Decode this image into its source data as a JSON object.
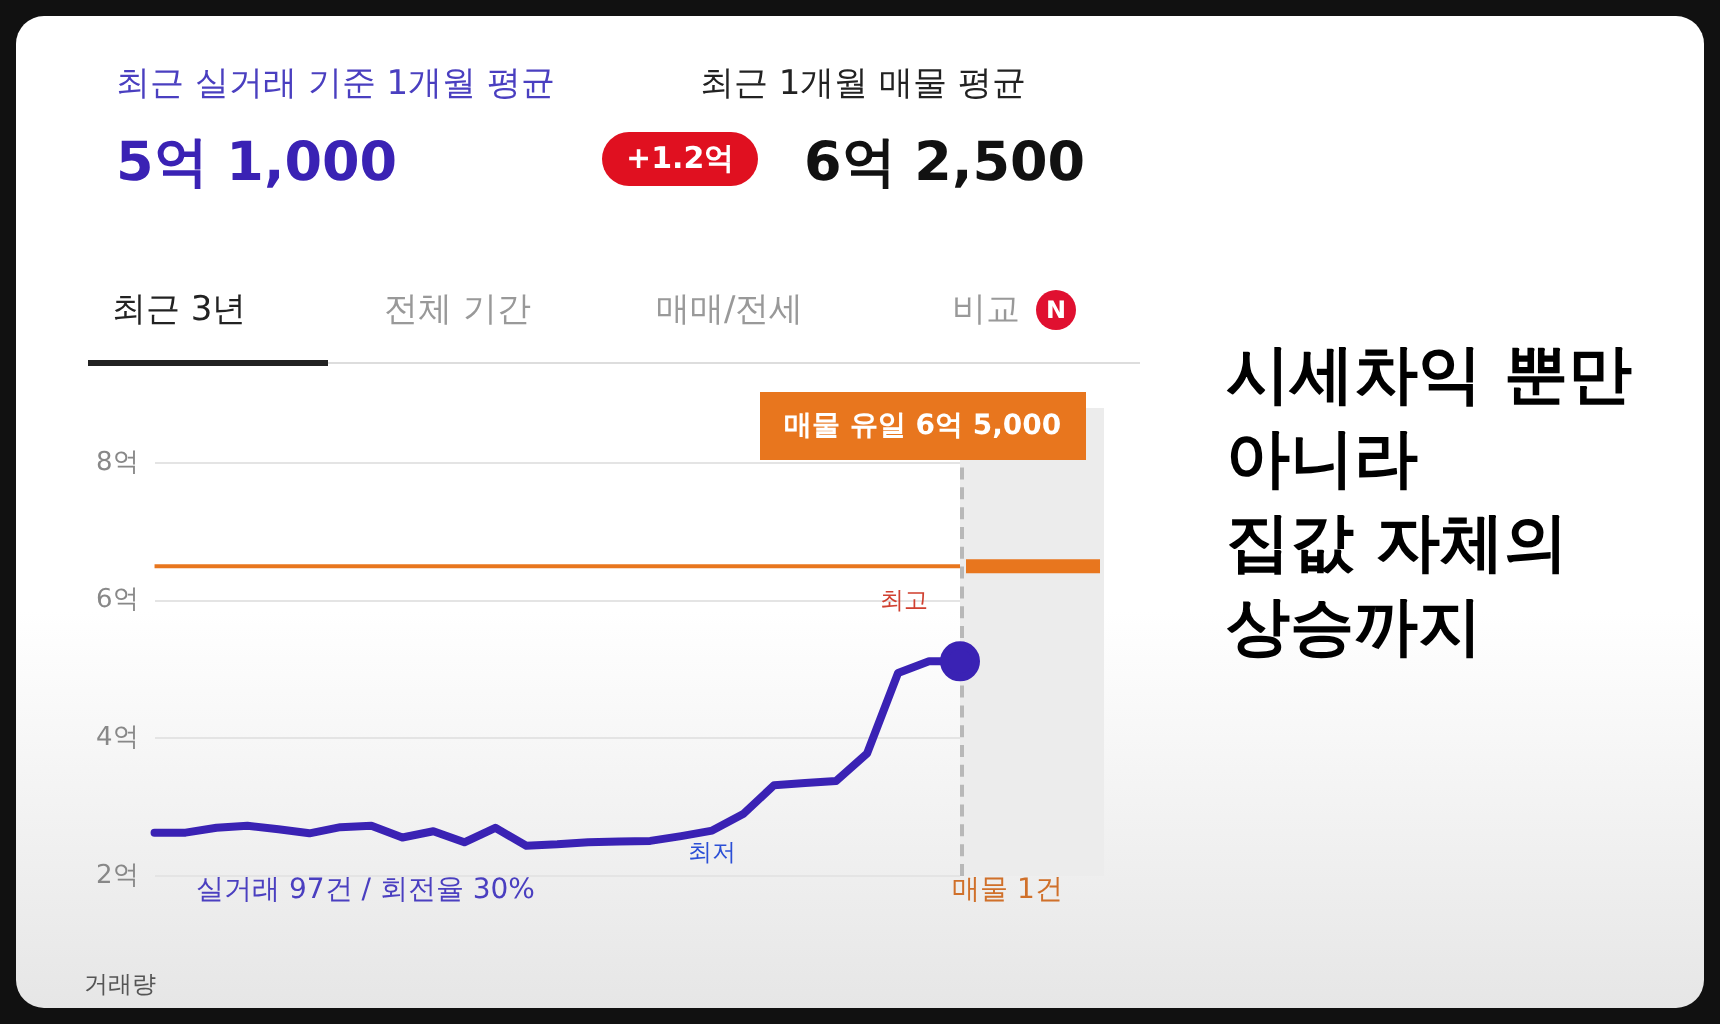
{
  "chart_data": {
    "type": "line",
    "categories": [
      null,
      null,
      null,
      null,
      null,
      null,
      null,
      null,
      null,
      null,
      null,
      null,
      null,
      null,
      null,
      null,
      null,
      null,
      null,
      null,
      null,
      null,
      null,
      null,
      null,
      null,
      null
    ],
    "series": [
      {
        "color": "#3a22b4",
        "values": [
          2.63,
          2.63,
          2.7,
          2.73,
          2.68,
          2.62,
          2.71,
          2.73,
          2.56,
          2.65,
          2.49,
          2.7,
          2.44,
          2.46,
          2.49,
          2.5,
          2.51,
          2.58,
          2.66,
          2.9,
          3.32,
          3.35,
          3.38,
          3.78,
          4.95,
          5.12,
          5.12
        ]
      }
    ],
    "ylim": [
      2,
      8.8
    ],
    "yticks": [
      {
        "value": 2,
        "label": "2억"
      },
      {
        "value": 4,
        "label": "4억"
      },
      {
        "value": 6,
        "label": "6억"
      },
      {
        "value": 8,
        "label": "8억"
      }
    ],
    "tick_labels": "y",
    "grid": "y",
    "legend": false,
    "ref_lines": [
      {
        "axis": "y",
        "value": 6.5,
        "color": "#e8761e"
      }
    ],
    "annotations": [
      "최고",
      "최저",
      "최근 실거래 기준 1개월 평균",
      "5억 1,000",
      "최근 1개월 매물 평균",
      "+1.2억",
      "6억 2,500",
      "최근 3년",
      "전체 기간",
      "매매/전세",
      "비교",
      "N",
      "실거래 97건 / 회전율 30%",
      "매물 1건",
      "거래량",
      "시세차익 뿐만",
      "아니라",
      "집값 자체의",
      "상승까지",
      "매물 유일 6억 5,000"
    ]
  }
}
